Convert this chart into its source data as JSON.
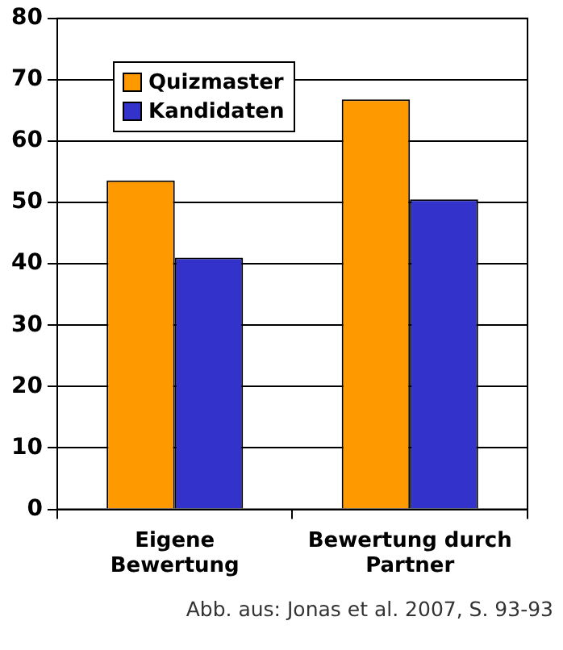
{
  "chart_data": {
    "type": "bar",
    "categories": [
      "Eigene Bewertung",
      "Bewertung durch Partner"
    ],
    "series": [
      {
        "name": "Quizmaster",
        "color": "#ff9900",
        "values": [
          53.6,
          66.8
        ]
      },
      {
        "name": "Kandidaten",
        "color": "#3333cc",
        "values": [
          41.0,
          50.5
        ]
      }
    ],
    "ylim": [
      0,
      80
    ],
    "yticks": [
      0,
      10,
      20,
      30,
      40,
      50,
      60,
      70,
      80
    ],
    "grid": "y",
    "legend": "top left",
    "annotations": [
      "Abb. aus: Jonas et al. 2007, S. 93-93"
    ]
  }
}
